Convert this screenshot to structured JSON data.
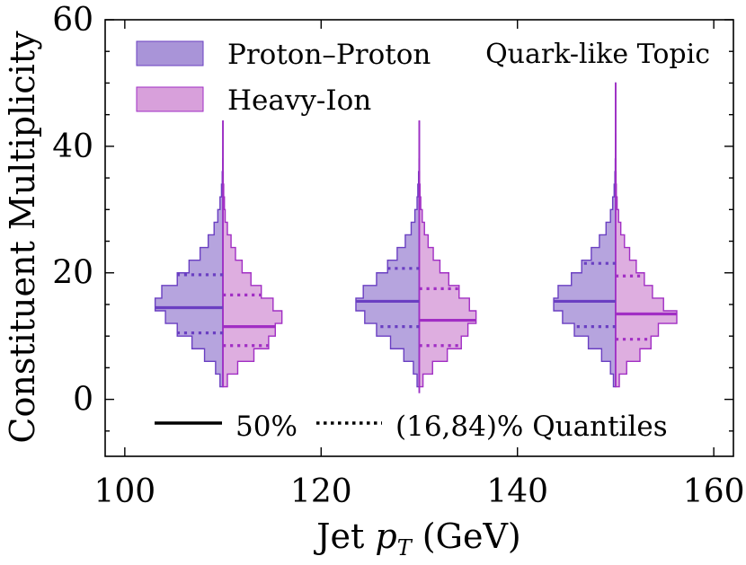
{
  "chart_data": {
    "type": "violin",
    "xlabel": "Jet $p_T$ (GeV)",
    "xlabel_main": "Jet ",
    "xlabel_var": "p",
    "xlabel_sub": "T",
    "xlabel_unit": " (GeV)",
    "ylabel": "Constituent Multiplicity",
    "xlim": [
      98,
      162
    ],
    "ylim": [
      -9,
      60
    ],
    "xticks": [
      100,
      120,
      140,
      160
    ],
    "yticks": [
      0,
      20,
      40,
      60
    ],
    "xtick_labels": [
      "100",
      "120",
      "140",
      "160"
    ],
    "ytick_labels": [
      "0",
      "20",
      "40",
      "60"
    ],
    "annotation": "Quark-like Topic",
    "legend_series_location": "upper-left",
    "legend_lines_location": "lower-center",
    "legend_lines": [
      {
        "style": "solid",
        "label": "50%"
      },
      {
        "style": "dotted",
        "label": "(16,84)% Quantiles"
      }
    ],
    "bin_edges": [
      2,
      4,
      6,
      8,
      10,
      12,
      14,
      16,
      18,
      20,
      22,
      24,
      26,
      28,
      30,
      32,
      34,
      36,
      38,
      40,
      42,
      44,
      46,
      48,
      50
    ],
    "series": [
      {
        "name": "Proton–Proton",
        "side": "left",
        "color": "#6a3fc2",
        "fill": "#a994d8",
        "groups": [
          {
            "x": 110,
            "top": 44,
            "bottom": 2,
            "hist": [
              0.04,
              0.1,
              0.25,
              0.42,
              0.62,
              0.78,
              0.92,
              0.83,
              0.62,
              0.46,
              0.31,
              0.2,
              0.12,
              0.07,
              0.04,
              0.02,
              0.01,
              0.004,
              0.002,
              0.001,
              0.001
            ],
            "median": 14.5,
            "q16": 10.5,
            "q84": 19.7
          },
          {
            "x": 130,
            "top": 44,
            "bottom": 1,
            "hist": [
              0.03,
              0.08,
              0.21,
              0.39,
              0.58,
              0.74,
              0.86,
              0.76,
              0.58,
              0.43,
              0.3,
              0.19,
              0.11,
              0.06,
              0.03,
              0.02,
              0.01,
              0.004,
              0.002,
              0.001,
              0.001
            ],
            "median": 15.5,
            "q16": 11.5,
            "q84": 20.7
          },
          {
            "x": 150,
            "top": 50,
            "bottom": 2,
            "hist": [
              0.03,
              0.07,
              0.19,
              0.37,
              0.56,
              0.72,
              0.84,
              0.78,
              0.6,
              0.46,
              0.33,
              0.22,
              0.13,
              0.07,
              0.04,
              0.02,
              0.01,
              0.005,
              0.003,
              0.002,
              0.001,
              0.001,
              0.001,
              0.001
            ],
            "median": 15.5,
            "q16": 11.5,
            "q84": 21.5
          }
        ]
      },
      {
        "name": "Heavy-Ion",
        "side": "right",
        "color": "#a12ec4",
        "fill": "#d8a0db",
        "groups": [
          {
            "x": 110,
            "top": 44,
            "bottom": 2,
            "hist": [
              0.06,
              0.2,
              0.42,
              0.62,
              0.71,
              0.8,
              0.68,
              0.52,
              0.38,
              0.26,
              0.17,
              0.11,
              0.06,
              0.03,
              0.02,
              0.01,
              0.004,
              0.002,
              0.001,
              0.001,
              0.001
            ],
            "median": 11.5,
            "q16": 8.5,
            "q84": 16.5
          },
          {
            "x": 130,
            "top": 44,
            "bottom": 1,
            "hist": [
              0.05,
              0.18,
              0.38,
              0.57,
              0.66,
              0.77,
              0.68,
              0.54,
              0.4,
              0.28,
              0.19,
              0.12,
              0.07,
              0.04,
              0.02,
              0.01,
              0.004,
              0.002,
              0.001,
              0.001,
              0.001
            ],
            "median": 12.5,
            "q16": 8.5,
            "q84": 17.5
          },
          {
            "x": 150,
            "top": 50,
            "bottom": 2,
            "hist": [
              0.05,
              0.15,
              0.33,
              0.48,
              0.58,
              0.83,
              0.65,
              0.5,
              0.39,
              0.28,
              0.19,
              0.12,
              0.07,
              0.04,
              0.02,
              0.01,
              0.006,
              0.004,
              0.002,
              0.002,
              0.001,
              0.001,
              0.001,
              0.001
            ],
            "median": 13.5,
            "q16": 9.5,
            "q84": 19.5
          }
        ]
      }
    ]
  }
}
